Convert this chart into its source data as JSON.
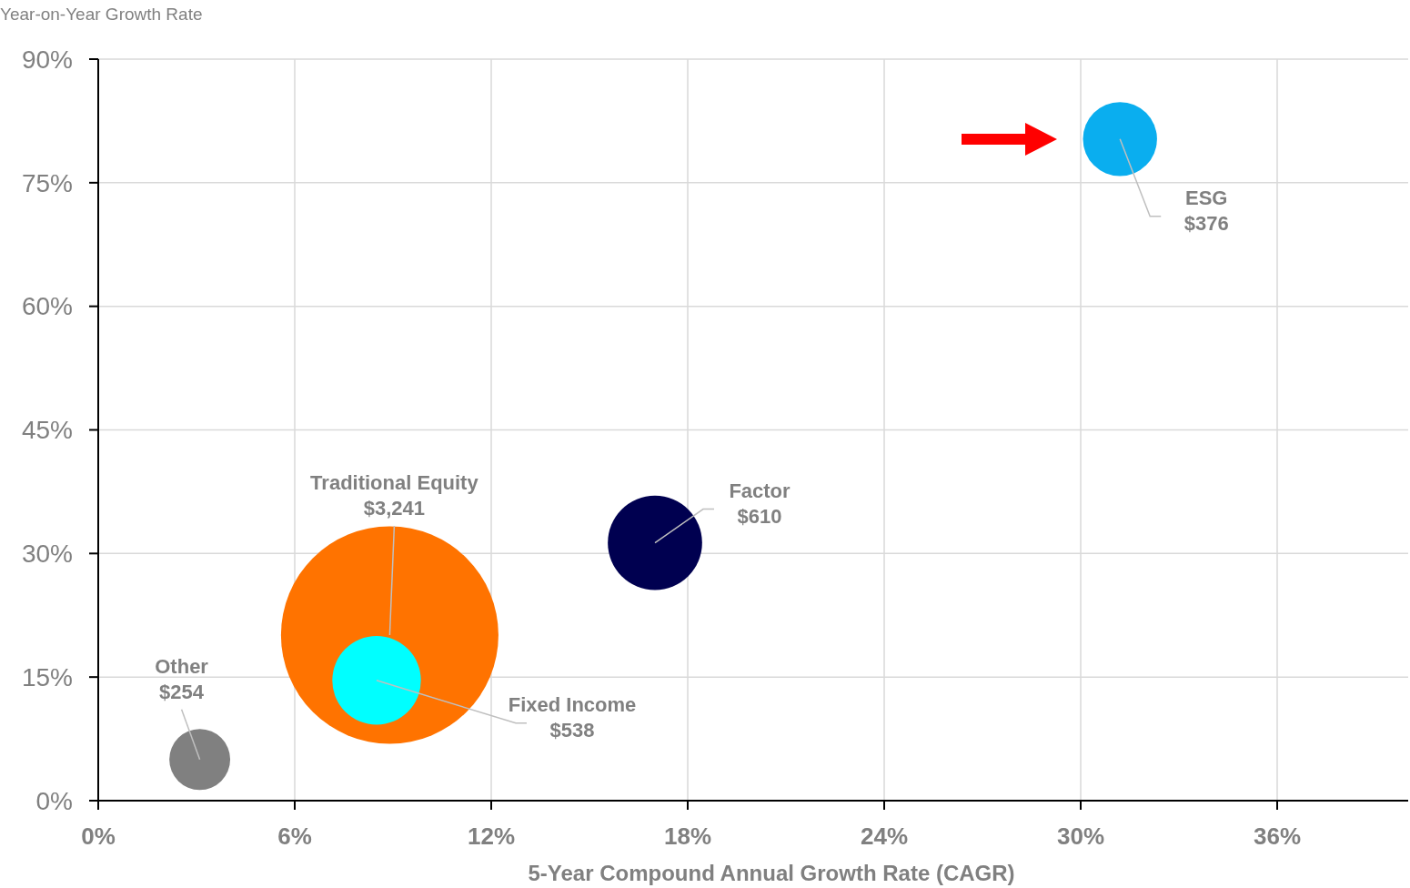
{
  "chart_data": {
    "type": "bubble",
    "xlabel": "5-Year Compound Annual Growth Rate (CAGR)",
    "ylabel": "Year-on-Year Growth Rate",
    "xlim": [
      0,
      40
    ],
    "ylim": [
      0,
      90
    ],
    "xticks": [
      {
        "value": 0,
        "label": "0%"
      },
      {
        "value": 6,
        "label": "6%"
      },
      {
        "value": 12,
        "label": "12%"
      },
      {
        "value": 18,
        "label": "18%"
      },
      {
        "value": 24,
        "label": "24%"
      },
      {
        "value": 30,
        "label": "30%"
      },
      {
        "value": 36,
        "label": "36%"
      }
    ],
    "yticks": [
      {
        "value": 0,
        "label": "0%"
      },
      {
        "value": 15,
        "label": "15%"
      },
      {
        "value": 30,
        "label": "30%"
      },
      {
        "value": 45,
        "label": "45%"
      },
      {
        "value": 60,
        "label": "60%"
      },
      {
        "value": 75,
        "label": "75%"
      },
      {
        "value": 90,
        "label": "90%"
      }
    ],
    "grid": true,
    "series": [
      {
        "name": "Other",
        "color": "#808080",
        "x": [
          3.1
        ],
        "values": [
          5.0
        ],
        "sizes": [
          254
        ],
        "value_labels": [
          "$254"
        ]
      },
      {
        "name": "Traditional Equity",
        "color": "#ff7300",
        "x": [
          8.9
        ],
        "values": [
          20.1
        ],
        "sizes": [
          3241
        ],
        "value_labels": [
          "$3,241"
        ]
      },
      {
        "name": "Fixed Income",
        "color": "#00ffff",
        "x": [
          8.5
        ],
        "values": [
          14.6
        ],
        "sizes": [
          538
        ],
        "value_labels": [
          "$538"
        ]
      },
      {
        "name": "Factor",
        "color": "#000050",
        "x": [
          17.0
        ],
        "values": [
          31.3
        ],
        "sizes": [
          610
        ],
        "value_labels": [
          "$610"
        ]
      },
      {
        "name": "ESG",
        "color": "#0aaeef",
        "x": [
          31.2
        ],
        "values": [
          80.3
        ],
        "sizes": [
          376
        ],
        "value_labels": [
          "$376"
        ]
      }
    ]
  }
}
